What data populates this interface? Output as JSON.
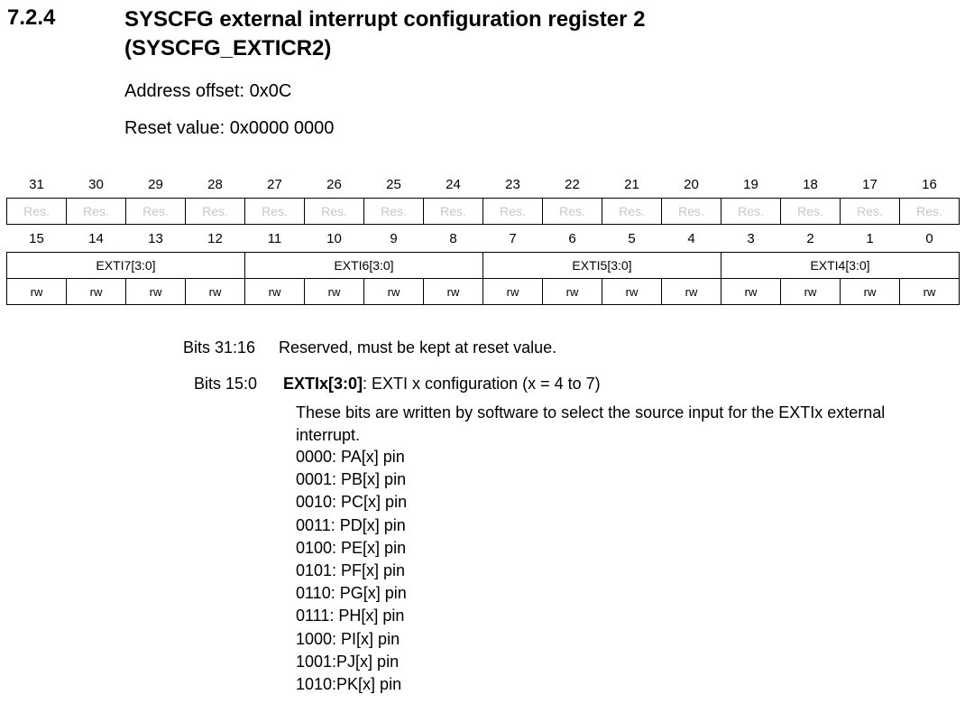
{
  "section": {
    "number": "7.2.4",
    "title_line1": "SYSCFG external interrupt configuration register 2",
    "title_line2": "(SYSCFG_EXTICR2)"
  },
  "address_offset": "Address offset: 0x0C",
  "reset_value": "Reset value: 0x0000 0000",
  "register": {
    "upper_bits": [
      "31",
      "30",
      "29",
      "28",
      "27",
      "26",
      "25",
      "24",
      "23",
      "22",
      "21",
      "20",
      "19",
      "18",
      "17",
      "16"
    ],
    "upper_field": "Res.",
    "lower_bits": [
      "15",
      "14",
      "13",
      "12",
      "11",
      "10",
      "9",
      "8",
      "7",
      "6",
      "5",
      "4",
      "3",
      "2",
      "1",
      "0"
    ],
    "lower_fields": [
      "EXTI7[3:0]",
      "EXTI6[3:0]",
      "EXTI5[3:0]",
      "EXTI4[3:0]"
    ],
    "access": "rw"
  },
  "descriptions": {
    "bits_31_16_label": "Bits 31:16",
    "bits_31_16_text": "Reserved, must be kept at reset value.",
    "bits_15_0_label": "Bits 15:0",
    "field_name": "EXTIx[3:0]",
    "field_title": ": EXTI x configuration (x = 4 to 7)",
    "body": "These bits are written by software to select the source input for the EXTIx external interrupt.",
    "options": [
      "0000: PA[x] pin",
      "0001: PB[x] pin",
      "0010: PC[x] pin",
      "0011: PD[x] pin",
      "0100: PE[x] pin",
      "0101: PF[x] pin",
      "0110: PG[x] pin",
      "0111: PH[x] pin",
      "1000: PI[x] pin",
      "1001:PJ[x] pin",
      "1010:PK[x] pin"
    ]
  }
}
